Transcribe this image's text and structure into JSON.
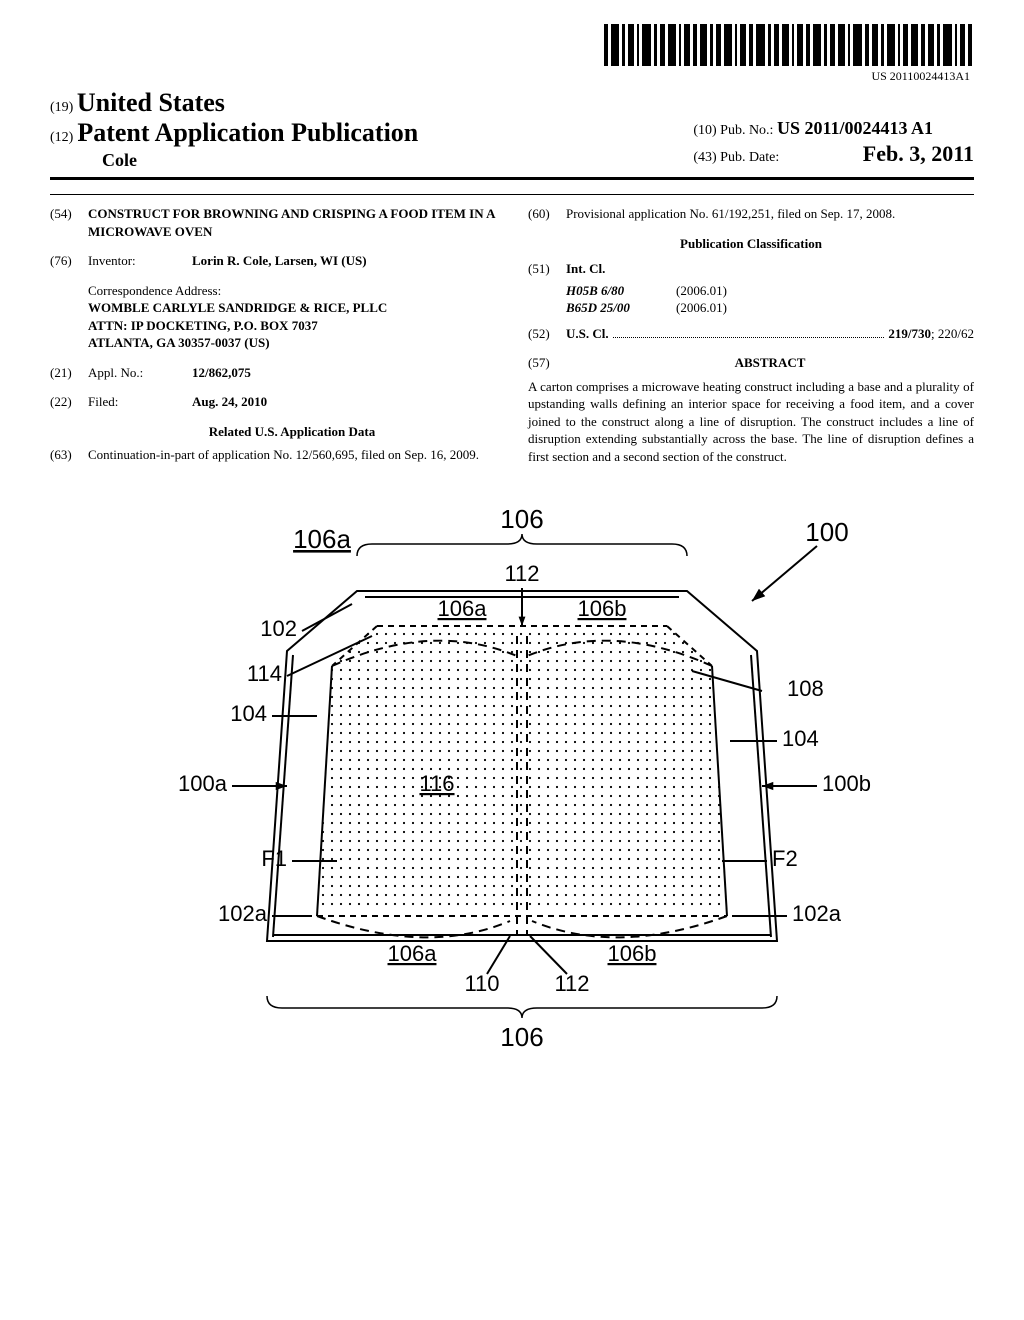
{
  "barcode_label": "US 20110024413A1",
  "header": {
    "country_code": "(19)",
    "country": "United States",
    "pub_code": "(12)",
    "pub_title": "Patent Application Publication",
    "author": "Cole",
    "pubno_code": "(10)",
    "pubno_label": "Pub. No.:",
    "pubno_value": "US 2011/0024413 A1",
    "pubdate_code": "(43)",
    "pubdate_label": "Pub. Date:",
    "pubdate_value": "Feb. 3, 2011"
  },
  "left_col": {
    "title_code": "(54)",
    "title": "CONSTRUCT FOR BROWNING AND CRISPING A FOOD ITEM IN A MICROWAVE OVEN",
    "inventor_code": "(76)",
    "inventor_label": "Inventor:",
    "inventor_value": "Lorin R. Cole, Larsen, WI (US)",
    "corr_label": "Correspondence Address:",
    "corr_lines": [
      "WOMBLE CARLYLE SANDRIDGE & RICE, PLLC",
      "ATTN: IP DOCKETING, P.O. BOX 7037",
      "ATLANTA, GA 30357-0037 (US)"
    ],
    "applno_code": "(21)",
    "applno_label": "Appl. No.:",
    "applno_value": "12/862,075",
    "filed_code": "(22)",
    "filed_label": "Filed:",
    "filed_value": "Aug. 24, 2010",
    "related_heading": "Related U.S. Application Data",
    "cont_code": "(63)",
    "cont_text": "Continuation-in-part of application No. 12/560,695, filed on Sep. 16, 2009."
  },
  "right_col": {
    "prov_code": "(60)",
    "prov_text": "Provisional application No. 61/192,251, filed on Sep. 17, 2008.",
    "pub_class_heading": "Publication Classification",
    "intcl_code": "(51)",
    "intcl_label": "Int. Cl.",
    "intcl_rows": [
      {
        "sym": "H05B 6/80",
        "date": "(2006.01)"
      },
      {
        "sym": "B65D 25/00",
        "date": "(2006.01)"
      }
    ],
    "uscl_code": "(52)",
    "uscl_label": "U.S. Cl.",
    "uscl_bold": "219/730",
    "uscl_rest": "; 220/62",
    "abstract_code": "(57)",
    "abstract_label": "ABSTRACT",
    "abstract_text": "A carton comprises a microwave heating construct including a base and a plurality of upstanding walls defining an interior space for receiving a food item, and a cover joined to the construct along a line of disruption. The construct includes a line of disruption extending substantially across the base. The line of disruption defines a first section and a second section of the construct."
  },
  "figure": {
    "labels": {
      "top106": "106",
      "arrow100": "100",
      "u106a_tl": "106a",
      "u112_top": "112",
      "u106a_mid": "106a",
      "u106b_mid": "106b",
      "n102": "102",
      "n114": "114",
      "n108": "108",
      "n104l": "104",
      "n104r": "104",
      "a100a": "100a",
      "u116": "116",
      "a100b": "100b",
      "F1": "F1",
      "F2": "F2",
      "n102a_l": "102a",
      "n102a_r": "102a",
      "u106a_bot": "106a",
      "u106b_bot": "106b",
      "n110": "110",
      "n112_bot": "112",
      "bot106": "106"
    },
    "style": {
      "stroke": "#000000",
      "stroke_width": 2,
      "label_fontsize": 22,
      "label_fontsize_big": 26,
      "dot_fill": "#000000",
      "dot_radius": 1.1,
      "background": "#ffffff"
    }
  }
}
